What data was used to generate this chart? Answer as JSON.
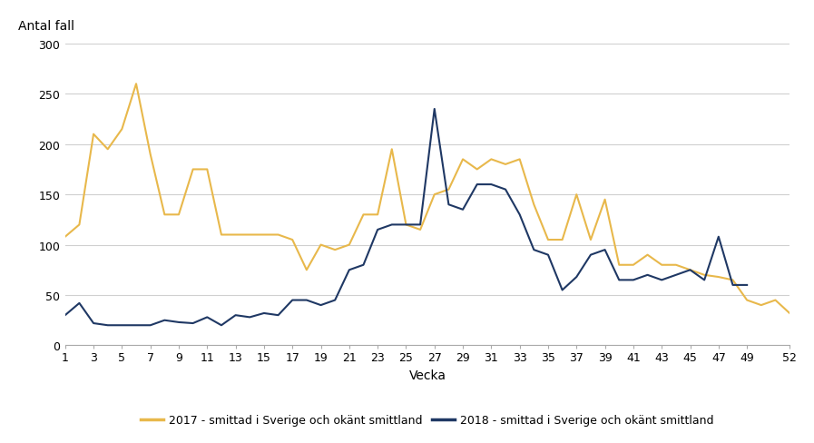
{
  "weeks_2017": [
    1,
    2,
    3,
    4,
    5,
    6,
    7,
    8,
    9,
    10,
    11,
    12,
    13,
    14,
    15,
    16,
    17,
    18,
    19,
    20,
    21,
    22,
    23,
    24,
    25,
    26,
    27,
    28,
    29,
    30,
    31,
    32,
    33,
    34,
    35,
    36,
    37,
    38,
    39,
    40,
    41,
    42,
    43,
    44,
    45,
    46,
    47,
    48,
    49,
    50,
    51,
    52
  ],
  "values_2017": [
    108,
    120,
    210,
    195,
    215,
    260,
    190,
    130,
    130,
    175,
    175,
    110,
    110,
    110,
    110,
    110,
    105,
    75,
    100,
    95,
    100,
    130,
    130,
    195,
    120,
    115,
    150,
    155,
    185,
    175,
    185,
    180,
    185,
    140,
    105,
    105,
    150,
    105,
    145,
    80,
    80,
    90,
    80,
    80,
    75,
    70,
    68,
    65,
    45,
    40,
    45,
    32
  ],
  "weeks_2018": [
    1,
    2,
    3,
    4,
    5,
    6,
    7,
    8,
    9,
    10,
    11,
    12,
    13,
    14,
    15,
    16,
    17,
    18,
    19,
    20,
    21,
    22,
    23,
    24,
    25,
    26,
    27,
    28,
    29,
    30,
    31,
    32,
    33,
    34,
    35,
    36,
    37,
    38,
    39,
    40,
    41,
    42,
    43,
    44,
    45,
    46,
    47,
    48,
    49
  ],
  "values_2018": [
    30,
    42,
    22,
    20,
    20,
    20,
    20,
    25,
    23,
    22,
    28,
    20,
    30,
    28,
    32,
    30,
    45,
    45,
    40,
    45,
    75,
    80,
    115,
    120,
    120,
    120,
    235,
    140,
    135,
    160,
    160,
    155,
    130,
    95,
    90,
    55,
    68,
    90,
    95,
    65,
    65,
    70,
    65,
    70,
    75,
    65,
    108,
    60,
    60
  ],
  "color_2017": "#E8B84B",
  "color_2018": "#1F3864",
  "xlabel": "Vecka",
  "ylabel": "Antal fall",
  "ylim": [
    0,
    300
  ],
  "yticks": [
    0,
    50,
    100,
    150,
    200,
    250,
    300
  ],
  "xticks": [
    1,
    3,
    5,
    7,
    9,
    11,
    13,
    15,
    17,
    19,
    21,
    23,
    25,
    27,
    29,
    31,
    33,
    35,
    37,
    39,
    41,
    43,
    45,
    47,
    49,
    52
  ],
  "legend_2017": "2017 - smittad i Sverige och okänt smittland",
  "legend_2018": "2018 - smittad i Sverige och okänt smittland",
  "background_color": "#ffffff",
  "grid_color": "#d0d0d0"
}
